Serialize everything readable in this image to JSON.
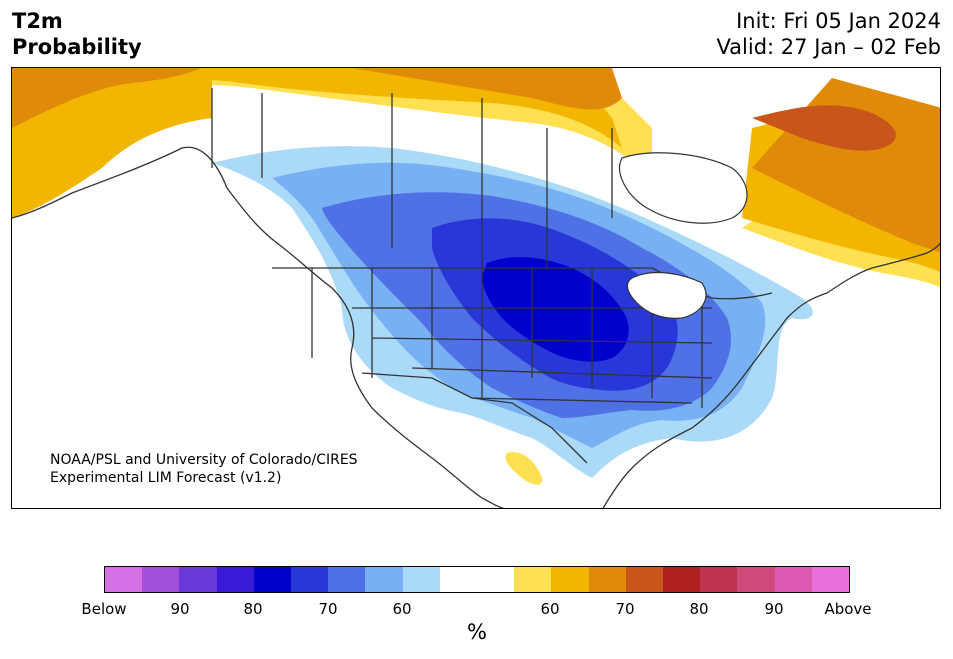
{
  "header": {
    "variable": "T2m",
    "product": "Probability",
    "init": "Init: Fri 05 Jan 2024",
    "valid": "Valid: 27 Jan – 02 Feb"
  },
  "credit": {
    "line1": "NOAA/PSL and University of Colorado/CIRES",
    "line2": "Experimental LIM Forecast (v1.2)"
  },
  "colorbar": {
    "unit": "%",
    "colors": [
      "#d470e6",
      "#a050dc",
      "#6a38d8",
      "#3a1ad6",
      "#0000cd",
      "#2838d8",
      "#5070e6",
      "#78b0f4",
      "#aadaf8",
      "#ffffff",
      "#ffffff",
      "#ffe050",
      "#f2b600",
      "#e08a0a",
      "#c8561a",
      "#b02020",
      "#c03350",
      "#cf4a7a",
      "#dc5ab2",
      "#e870dc"
    ],
    "tick_labels": [
      "Below",
      "90",
      "80",
      "70",
      "60",
      "60",
      "70",
      "80",
      "90",
      "Above"
    ]
  },
  "map": {
    "shading": {
      "below": [
        "#aadaf8",
        "#78b0f4",
        "#5070e6",
        "#2838d8",
        "#0000cd"
      ],
      "above": [
        "#ffe050",
        "#f2b600",
        "#e08a0a",
        "#c8561a"
      ]
    },
    "lines": "#333333"
  }
}
